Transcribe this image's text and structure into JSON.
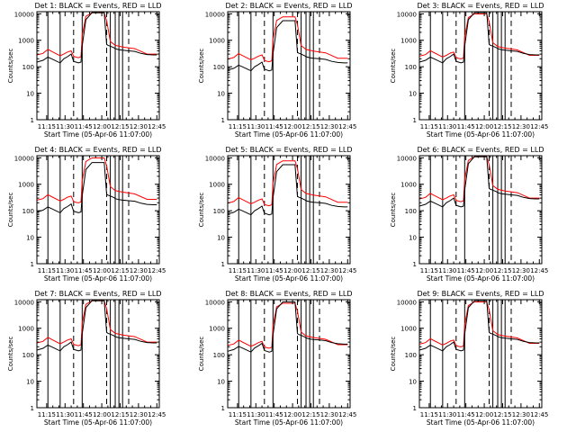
{
  "chart_data": {
    "type": "line",
    "xlabel": "Start Time (05-Apr-06 11:07:00)",
    "ylabel": "Counts/sec",
    "x_ticks": [
      "11:15",
      "11:30",
      "11:45",
      "12:00",
      "12:15",
      "12:30",
      "12:45"
    ],
    "x_tick_minutes": [
      8,
      23,
      38,
      53,
      68,
      83,
      98
    ],
    "xlim_minutes": [
      0,
      100
    ],
    "y_scale": "log",
    "y_ticks": [
      "1",
      "10",
      "100",
      "1000",
      "10000"
    ],
    "y_tick_values": [
      1,
      10,
      100,
      1000,
      10000
    ],
    "ylim": [
      1,
      12000
    ],
    "series_colors": {
      "events": "#000000",
      "lld": "#ff0000"
    },
    "vertical_lines_solid_minutes": [
      9,
      19,
      37,
      60,
      64,
      67,
      70
    ],
    "vertical_lines_dashed_minutes": [
      30,
      57,
      75
    ],
    "panels": [
      {
        "title": "Det 1: BLACK = Events, RED = LLD",
        "events_scale": 1.0,
        "lld_scale": 1.0
      },
      {
        "title": "Det 2: BLACK = Events, RED = LLD",
        "events_scale": 0.5,
        "lld_scale": 0.7
      },
      {
        "title": "Det 3: BLACK = Events, RED = LLD",
        "events_scale": 1.0,
        "lld_scale": 0.9
      },
      {
        "title": "Det 4: BLACK = Events, RED = LLD",
        "events_scale": 0.6,
        "lld_scale": 0.9
      },
      {
        "title": "Det 5: BLACK = Events, RED = LLD",
        "events_scale": 0.5,
        "lld_scale": 0.7
      },
      {
        "title": "Det 6: BLACK = Events, RED = LLD",
        "events_scale": 1.0,
        "lld_scale": 1.0
      },
      {
        "title": "Det 7: BLACK = Events, RED = LLD",
        "events_scale": 1.0,
        "lld_scale": 1.0
      },
      {
        "title": "Det 8: BLACK = Events, RED = LLD",
        "events_scale": 0.9,
        "lld_scale": 0.8
      },
      {
        "title": "Det 9: BLACK = Events, RED = LLD",
        "events_scale": 1.0,
        "lld_scale": 0.9
      }
    ],
    "events_base": {
      "x": [
        0,
        5,
        9,
        12,
        19,
        22,
        25,
        28,
        30,
        32,
        34,
        36,
        37,
        40,
        45,
        50,
        55,
        57,
        58,
        60,
        63,
        64,
        67,
        70,
        75,
        80,
        85,
        90,
        95,
        98
      ],
      "y": [
        150,
        175,
        230,
        200,
        140,
        200,
        240,
        300,
        160,
        150,
        140,
        150,
        600,
        6000,
        11000,
        11000,
        11000,
        700,
        650,
        600,
        520,
        480,
        440,
        420,
        400,
        380,
        320,
        290,
        280,
        280
      ]
    },
    "lld_base": {
      "x": [
        0,
        5,
        9,
        12,
        19,
        22,
        25,
        28,
        30,
        32,
        34,
        36,
        37,
        40,
        45,
        50,
        55,
        57,
        58,
        60,
        63,
        64,
        67,
        70,
        75,
        80,
        85,
        90,
        95,
        98
      ],
      "y": [
        280,
        320,
        450,
        380,
        260,
        300,
        360,
        400,
        250,
        230,
        220,
        240,
        1500,
        8000,
        11000,
        11000,
        11000,
        5500,
        3000,
        900,
        700,
        640,
        600,
        560,
        520,
        480,
        380,
        300,
        300,
        300
      ]
    }
  }
}
